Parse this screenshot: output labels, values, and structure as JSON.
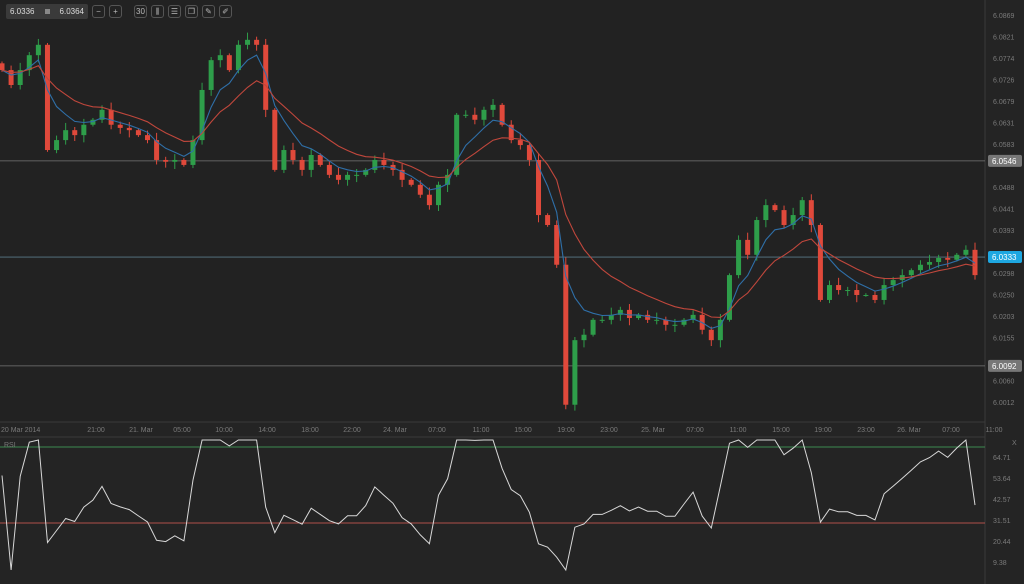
{
  "toolbar": {
    "bid": "6.0336",
    "ask": "6.0364",
    "buttons": [
      "zoom-out-icon",
      "zoom-in-icon",
      "timeframe-30-icon",
      "candle-type-icon",
      "indicators-icon",
      "compare-icon",
      "edit-icon",
      "draw-icon"
    ],
    "timeframe": "30"
  },
  "price_axis": {
    "ticks": [
      "6.0869",
      "6.0821",
      "6.0774",
      "6.0726",
      "6.0679",
      "6.0631",
      "6.0583",
      "6.0488",
      "6.0441",
      "6.0393",
      "6.0298",
      "6.0250",
      "6.0203",
      "6.0155",
      "6.0060",
      "6.0012"
    ]
  },
  "levels": [
    {
      "value": "6.0546",
      "color": "#6b6b6b"
    },
    {
      "value": "6.0333",
      "color": "#1ea7e1"
    },
    {
      "value": "6.0092",
      "color": "#6b6b6b"
    }
  ],
  "time_axis": [
    "20 Mar 2014",
    "21:00",
    "21. Mar",
    "05:00",
    "10:00",
    "14:00",
    "18:00",
    "22:00",
    "24. Mar",
    "07:00",
    "11:00",
    "15:00",
    "19:00",
    "23:00",
    "25. Mar",
    "07:00",
    "11:00",
    "15:00",
    "19:00",
    "23:00",
    "26. Mar",
    "07:00",
    "11:00"
  ],
  "rsi": {
    "label": "RSI",
    "ticks": [
      "64.71",
      "53.64",
      "42.57",
      "31.51",
      "20.44",
      "9.38"
    ],
    "upper": 70,
    "lower": 30,
    "close_label": "X"
  },
  "colors": {
    "up": "#2e9e4a",
    "down": "#e0493b",
    "ema_fast": "#2f6fa8",
    "ema_slow": "#c0473c"
  },
  "chart_data": {
    "type": "candlestick",
    "title": "",
    "price_range": [
      6.0012,
      6.0869
    ],
    "closes": [
      6.0747,
      6.0714,
      6.0747,
      6.078,
      6.0803,
      6.057,
      6.0592,
      6.0614,
      6.0603,
      6.0626,
      6.0637,
      6.0659,
      6.0626,
      6.0619,
      6.0614,
      6.0603,
      6.0592,
      6.0548,
      6.0544,
      6.0548,
      6.0537,
      6.0592,
      6.0703,
      6.0769,
      6.078,
      6.0747,
      6.0803,
      6.0814,
      6.0803,
      6.0659,
      6.0526,
      6.057,
      6.0548,
      6.0526,
      6.0559,
      6.0537,
      6.0515,
      6.0504,
      6.0515,
      6.0515,
      6.0526,
      6.0548,
      6.0537,
      6.0526,
      6.0504,
      6.0493,
      6.0471,
      6.0448,
      6.0493,
      6.0515,
      6.0648,
      6.0648,
      6.0637,
      6.0659,
      6.067,
      6.0626,
      6.0592,
      6.0581,
      6.0548,
      6.0426,
      6.0404,
      6.0316,
      6.0006,
      6.0149,
      6.0161,
      6.0194,
      6.0194,
      6.0205,
      6.0216,
      6.0198,
      6.0205,
      6.0194,
      6.0194,
      6.0183,
      6.0183,
      6.0194,
      6.0205,
      6.0172,
      6.0149,
      6.0194,
      6.0293,
      6.0371,
      6.0338,
      6.0415,
      6.0448,
      6.0437,
      6.0404,
      6.0426,
      6.0459,
      6.0404,
      6.0238,
      6.0271,
      6.026,
      6.026,
      6.0249,
      6.0249,
      6.0238,
      6.0271,
      6.0282,
      6.0293,
      6.0304,
      6.0316,
      6.0322,
      6.0331,
      6.0327,
      6.0338,
      6.0349,
      6.0293
    ]
  }
}
